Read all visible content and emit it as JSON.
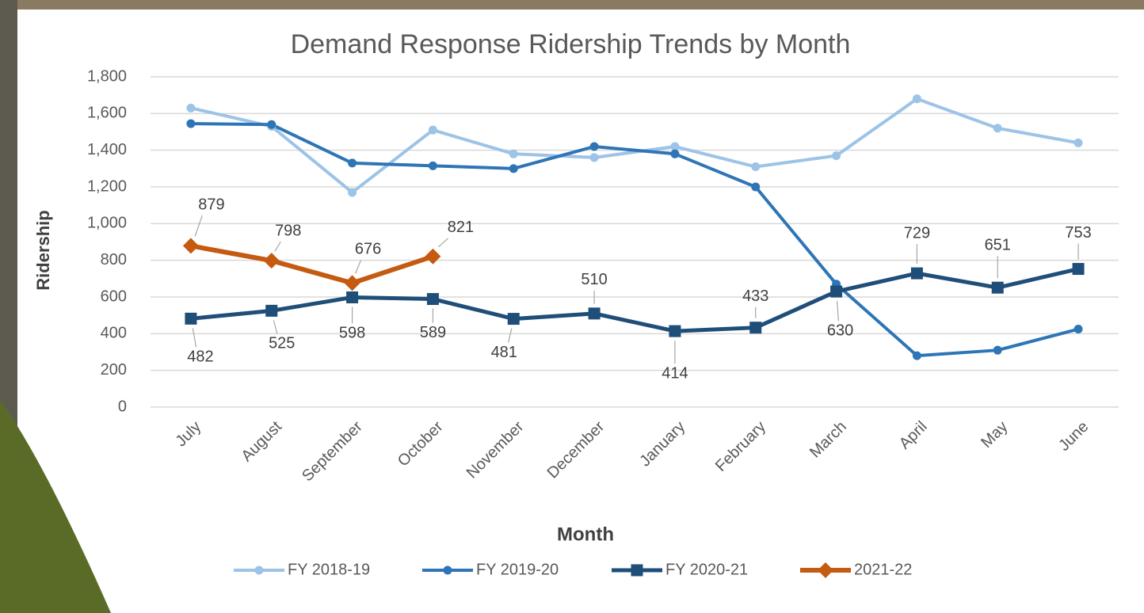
{
  "chart_data": {
    "type": "line",
    "title": "Demand Response Ridership Trends by Month",
    "x_label": "Month",
    "y_label": "Ridership",
    "categories": [
      "July",
      "August",
      "September",
      "October",
      "November",
      "December",
      "January",
      "February",
      "March",
      "April",
      "May",
      "June"
    ],
    "ylim": [
      0,
      1800
    ],
    "yticks": [
      0,
      200,
      400,
      600,
      800,
      {
        "value": 1000,
        "label": "1,000"
      },
      {
        "value": 1200,
        "label": "1,200"
      },
      {
        "value": 1400,
        "label": "1,400"
      },
      {
        "value": 1600,
        "label": "1,600"
      },
      {
        "value": 1800,
        "label": "1,800"
      }
    ],
    "grid": true,
    "legend": "bottom",
    "series": [
      {
        "name": "FY 2018-19",
        "color": "#9dc3e6",
        "marker": "circle",
        "values": [
          1630,
          1530,
          1170,
          1510,
          1380,
          1360,
          1420,
          1310,
          1370,
          1680,
          1520,
          1440
        ]
      },
      {
        "name": "FY 2019-20",
        "color": "#2e75b6",
        "marker": "circle",
        "values": [
          1545,
          1540,
          1330,
          1315,
          1300,
          1420,
          1380,
          1200,
          670,
          280,
          310,
          425
        ]
      },
      {
        "name": "FY 2020-21",
        "color": "#1f4e79",
        "marker": "square",
        "data_labels": true,
        "values": [
          482,
          525,
          598,
          589,
          481,
          510,
          414,
          433,
          630,
          729,
          651,
          753
        ]
      },
      {
        "name": "2021-22",
        "color": "#c55a11",
        "marker": "diamond",
        "data_labels": true,
        "values": [
          879,
          798,
          676,
          821,
          null,
          null,
          null,
          null,
          null,
          null,
          null,
          null
        ]
      }
    ]
  }
}
